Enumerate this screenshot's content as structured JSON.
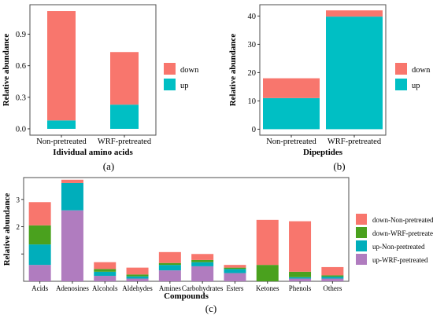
{
  "colors": {
    "down": "#f8766d",
    "up": "#00bfc4",
    "down_non": "#f8766d",
    "down_wrf": "#4aa11e",
    "up_non": "#00aebb",
    "up_wrf": "#b07cbf",
    "panel_border": "#4d4d4d"
  },
  "chart_data": [
    {
      "id": "a",
      "type": "bar",
      "stacked": true,
      "panel_label": "(a)",
      "xlabel": "Idividual amino acids",
      "ylabel": "Relative abundance",
      "categories": [
        "Non-pretreated",
        "WRF-pretreated"
      ],
      "ylim": [
        -0.06,
        1.18
      ],
      "yticks": [
        0.0,
        0.3,
        0.6,
        0.9
      ],
      "ytick_labels": [
        "0.0",
        "0.3",
        "0.6",
        "0.9"
      ],
      "grid": false,
      "legend_position": "right",
      "series": [
        {
          "name": "up",
          "color_key": "up",
          "values": [
            0.08,
            0.23
          ]
        },
        {
          "name": "down",
          "color_key": "down",
          "values": [
            1.04,
            0.5
          ]
        }
      ],
      "legend_order": [
        "down",
        "up"
      ]
    },
    {
      "id": "b",
      "type": "bar",
      "stacked": true,
      "panel_label": "(b)",
      "xlabel": "Dipeptides",
      "ylabel": "Relative abundance",
      "categories": [
        "Non-pretreated",
        "WRF-pretreated"
      ],
      "ylim": [
        -2.1,
        44
      ],
      "yticks": [
        0,
        10,
        20,
        30,
        40
      ],
      "ytick_labels": [
        "0",
        "10",
        "20",
        "30",
        "40"
      ],
      "grid": false,
      "legend_position": "right",
      "series": [
        {
          "name": "up",
          "color_key": "up",
          "values": [
            11,
            39.8
          ]
        },
        {
          "name": "down",
          "color_key": "down",
          "values": [
            7,
            2.2
          ]
        }
      ],
      "legend_order": [
        "down",
        "up"
      ]
    },
    {
      "id": "c",
      "type": "bar",
      "stacked": true,
      "panel_label": "(c)",
      "xlabel": "Compounds",
      "ylabel": "Relative abundance",
      "categories": [
        "Acids",
        "Adenosines",
        "Alcohols",
        "Aldehydes",
        "Amines",
        "Carbohydrates",
        "Esters",
        "Ketones",
        "Phenols",
        "Others"
      ],
      "ylim": [
        0,
        3.8
      ],
      "yticks": [
        1,
        2,
        3
      ],
      "ytick_labels": [
        "",
        "2",
        "3"
      ],
      "grid": false,
      "legend_position": "right",
      "series": [
        {
          "name": "up-WRF-pretreated",
          "color_key": "up_wrf",
          "values": [
            0.6,
            2.6,
            0.2,
            0.1,
            0.4,
            0.55,
            0.3,
            0.0,
            0.1,
            0.1
          ]
        },
        {
          "name": "up-Non-pretreated",
          "color_key": "up_non",
          "values": [
            0.75,
            1.0,
            0.15,
            0.08,
            0.2,
            0.15,
            0.15,
            0.0,
            0.05,
            0.07
          ]
        },
        {
          "name": "down-WRF-pretreated",
          "color_key": "down_wrf",
          "values": [
            0.7,
            0.0,
            0.1,
            0.07,
            0.07,
            0.08,
            0.05,
            0.6,
            0.2,
            0.05
          ]
        },
        {
          "name": "down-Non-pretreated",
          "color_key": "down_non",
          "values": [
            0.85,
            0.12,
            0.25,
            0.25,
            0.4,
            0.22,
            0.1,
            1.65,
            1.85,
            0.3
          ]
        }
      ],
      "legend_order": [
        "down-Non-pretreated",
        "down-WRF-pretreated",
        "up-Non-pretreated",
        "up-WRF-pretreated"
      ]
    }
  ]
}
